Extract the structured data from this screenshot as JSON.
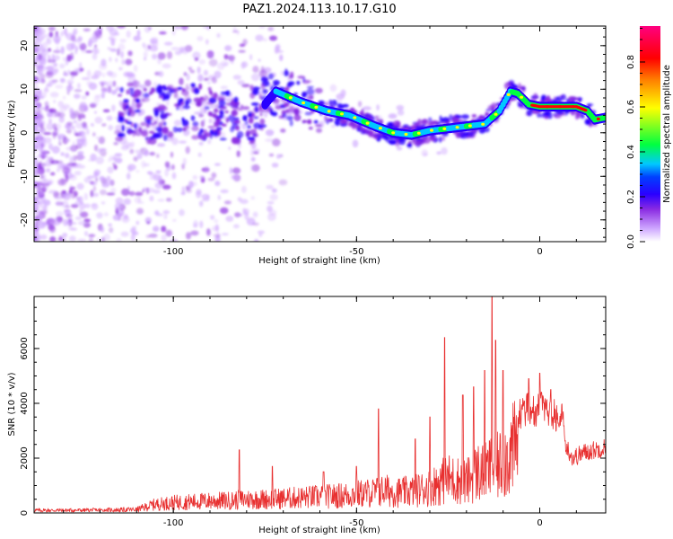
{
  "figure_title": "PAZ1.2024.113.10.17.G10",
  "colors": {
    "snr_line": "#e83030",
    "axes": "#000000",
    "colormap": [
      "#ffffff",
      "#cfa8ff",
      "#8a2be2",
      "#2a00ff",
      "#00c8ff",
      "#00ff40",
      "#ffff00",
      "#ff8000",
      "#ff0000",
      "#ff0080"
    ]
  },
  "chart_data": [
    {
      "type": "heatmap",
      "title": "",
      "xlabel": "Height of straight line (km)",
      "ylabel": "Frequency (Hz)",
      "xlim": [
        -138,
        18
      ],
      "ylim": [
        -25,
        24.5
      ],
      "x_ticks": [
        -100,
        -50,
        0
      ],
      "y_ticks": [
        -20,
        -10,
        0,
        10,
        20
      ],
      "grid": false,
      "colorbar": {
        "label": "Normalized spectral amplitude",
        "range": [
          0.0,
          0.96
        ],
        "ticks": [
          0.0,
          0.2,
          0.4,
          0.6,
          0.8
        ]
      },
      "ridge": {
        "description_values": "dominant frequency ridge (Hz) vs height (km)",
        "x": [
          -106,
          -95,
          -85,
          -78,
          -72,
          -65,
          -58,
          -52,
          -45,
          -40,
          -35,
          -30,
          -25,
          -20,
          -15,
          -11,
          -8,
          -6,
          -3,
          0,
          5,
          10,
          13,
          15,
          18
        ],
        "y": [
          4.5,
          5,
          4,
          3.5,
          9.5,
          7,
          5,
          4,
          1.5,
          0,
          -0.5,
          0.5,
          1,
          1.5,
          2,
          5,
          9.5,
          9,
          6.5,
          6,
          6,
          6,
          5,
          3,
          3.5
        ]
      }
    },
    {
      "type": "line",
      "title": "",
      "xlabel": "Height of straight line (km)",
      "ylabel": "SNR (10 * v/v)",
      "xlim": [
        -138,
        18
      ],
      "ylim": [
        0,
        7900
      ],
      "x_ticks": [
        -100,
        -50,
        0
      ],
      "y_ticks": [
        0,
        2000,
        4000,
        6000
      ],
      "grid": false,
      "series": [
        {
          "name": "",
          "envelope_x": [
            -138,
            -120,
            -110,
            -105,
            -100,
            -95,
            -90,
            -85,
            -80,
            -75,
            -70,
            -65,
            -60,
            -55,
            -50,
            -45,
            -42,
            -38,
            -35,
            -30,
            -27,
            -25,
            -22,
            -20,
            -17,
            -15,
            -13,
            -12,
            -10,
            -8,
            -6,
            -5,
            -3,
            -1,
            0,
            2,
            4,
            6,
            7,
            9,
            12,
            15,
            18
          ],
          "envelope_y": [
            150,
            160,
            200,
            500,
            600,
            650,
            700,
            720,
            800,
            800,
            850,
            900,
            950,
            1000,
            1100,
            1200,
            1300,
            1200,
            1250,
            1500,
            1800,
            2000,
            1900,
            1800,
            2400,
            2300,
            2700,
            2600,
            3000,
            3500,
            4000,
            4300,
            4400,
            4300,
            4500,
            4200,
            4200,
            4000,
            2500,
            2000,
            2200,
            2300,
            2400
          ],
          "spikes_x": [
            -82,
            -73,
            -59,
            -50,
            -44,
            -34,
            -30,
            -26,
            -21,
            -18,
            -15,
            -13,
            -12,
            -10,
            -3,
            0,
            3
          ],
          "spikes_y": [
            2300,
            1700,
            1500,
            1700,
            3800,
            2700,
            3500,
            6400,
            4300,
            4600,
            5200,
            7900,
            6300,
            5200,
            4900,
            5100,
            4500
          ]
        }
      ]
    }
  ]
}
